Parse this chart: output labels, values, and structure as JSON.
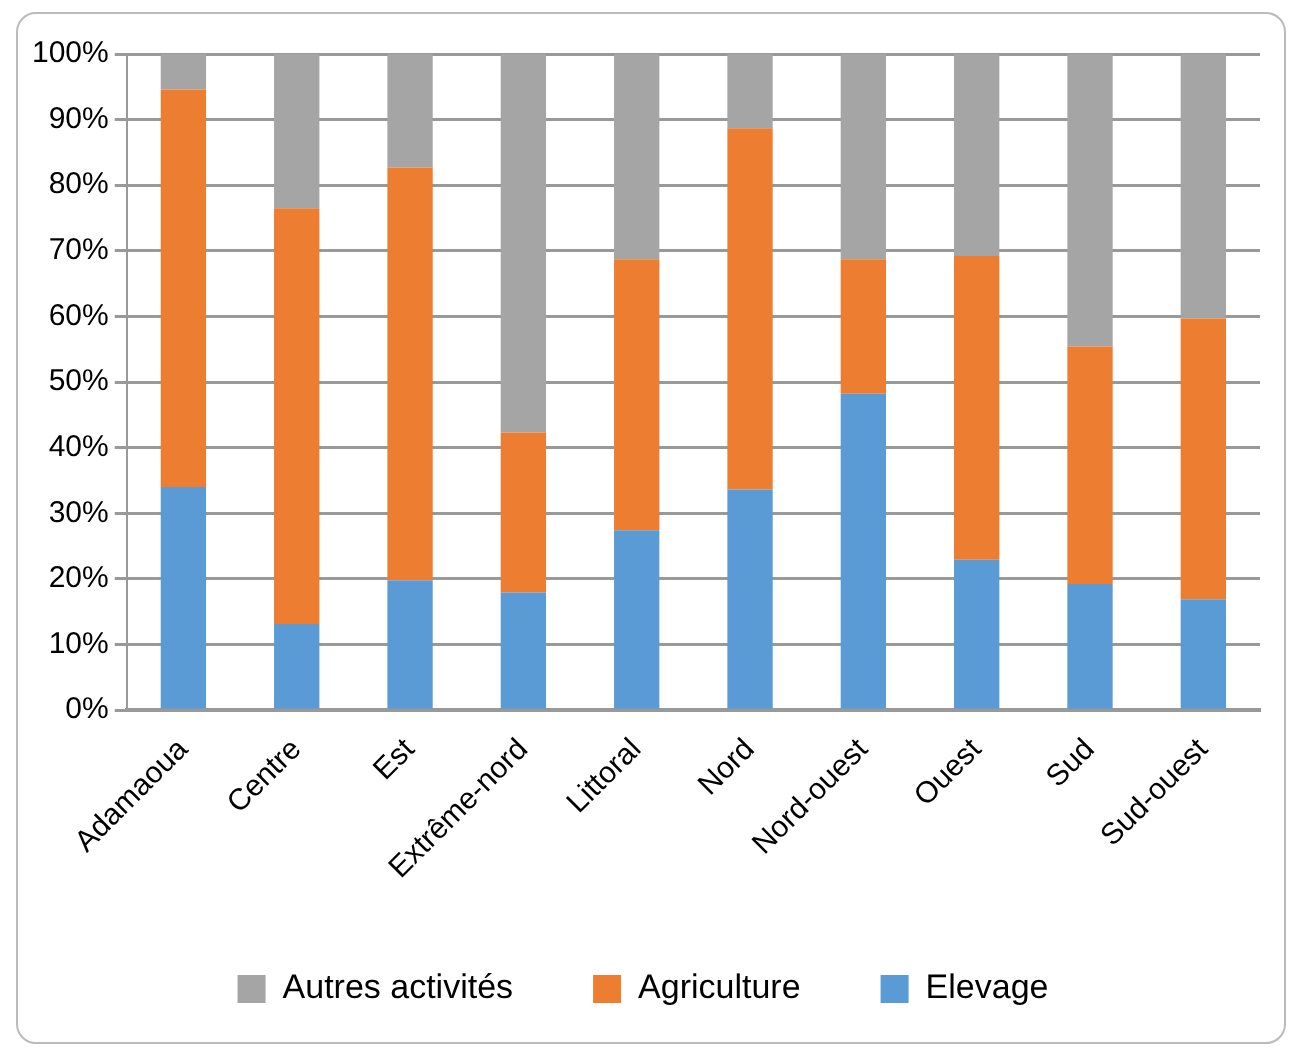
{
  "chart_data": {
    "type": "bar",
    "stacked": true,
    "categories": [
      "Adamaoua",
      "Centre",
      "Est",
      "Extrême-nord",
      "Littoral",
      "Nord",
      "Nord-ouest",
      "Ouest",
      "Sud",
      "Sud-ouest"
    ],
    "series": [
      {
        "name": "Elevage",
        "color": "#5b9bd5",
        "values": [
          34,
          13.1,
          19.8,
          17.9,
          27.4,
          33.6,
          48.2,
          22.9,
          19.2,
          16.9
        ]
      },
      {
        "name": "Agriculture",
        "color": "#ed7d31",
        "values": [
          60.6,
          63.4,
          62.9,
          24.4,
          41.3,
          55.1,
          20.5,
          46.3,
          36.2,
          42.8
        ]
      },
      {
        "name": "Autres activités",
        "color": "#a5a5a5",
        "values": [
          5.4,
          23.5,
          17.3,
          57.7,
          31.3,
          11.3,
          31.3,
          30.8,
          44.6,
          40.3
        ]
      }
    ],
    "ylim": [
      0,
      100
    ],
    "yticks": [
      {
        "value": 0,
        "label": "0%"
      },
      {
        "value": 10,
        "label": "10%"
      },
      {
        "value": 20,
        "label": "20%"
      },
      {
        "value": 30,
        "label": "30%"
      },
      {
        "value": 40,
        "label": "40%"
      },
      {
        "value": 50,
        "label": "50%"
      },
      {
        "value": 60,
        "label": "60%"
      },
      {
        "value": 70,
        "label": "70%"
      },
      {
        "value": 80,
        "label": "80%"
      },
      {
        "value": 90,
        "label": "90%"
      },
      {
        "value": 100,
        "label": "100%"
      }
    ],
    "grid": "y",
    "legend": "bottom"
  }
}
